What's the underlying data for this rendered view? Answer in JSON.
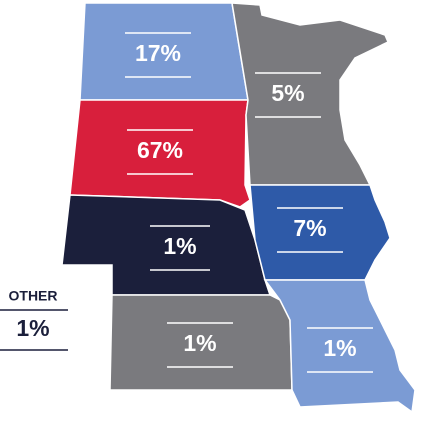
{
  "regions": [
    {
      "name": "North Dakota",
      "label": "17%"
    },
    {
      "name": "South Dakota",
      "label": "67%"
    },
    {
      "name": "Nebraska",
      "label": "1%"
    },
    {
      "name": "Kansas",
      "label": "1%"
    },
    {
      "name": "Minnesota",
      "label": "5%"
    },
    {
      "name": "Iowa",
      "label": "7%"
    },
    {
      "name": "Missouri",
      "label": "1%"
    }
  ],
  "other": {
    "title": "OTHER",
    "label": "1%"
  }
}
